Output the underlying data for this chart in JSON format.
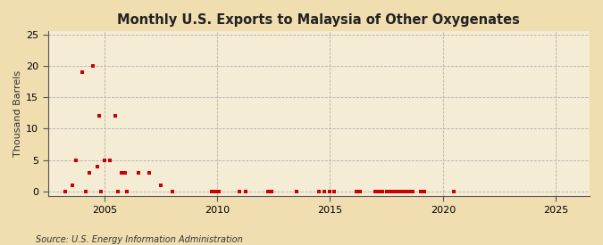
{
  "title": "Monthly U.S. Exports to Malaysia of Other Oxygenates",
  "ylabel": "Thousand Barrels",
  "source": "Source: U.S. Energy Information Administration",
  "outer_bg_color": "#f0ddb0",
  "plot_bg_color": "#f5ecd5",
  "marker_color": "#cc0000",
  "marker_size": 3,
  "xlim": [
    2002.5,
    2026.5
  ],
  "ylim": [
    -0.8,
    25.5
  ],
  "yticks": [
    0,
    5,
    10,
    15,
    20,
    25
  ],
  "xticks": [
    2005,
    2010,
    2015,
    2020,
    2025
  ],
  "grid_color": "#aaaaaa",
  "spine_color": "#555555",
  "data_x": [
    2003.25,
    2003.58,
    2003.75,
    2004.0,
    2004.17,
    2004.33,
    2004.5,
    2004.67,
    2004.75,
    2004.83,
    2005.0,
    2005.25,
    2005.5,
    2005.58,
    2005.75,
    2005.92,
    2006.0,
    2006.5,
    2007.0,
    2007.5,
    2008.0,
    2009.75,
    2009.83,
    2009.92,
    2010.0,
    2010.08,
    2011.0,
    2011.25,
    2012.25,
    2012.42,
    2013.5,
    2014.5,
    2014.75,
    2015.0,
    2015.17,
    2016.17,
    2016.33,
    2017.0,
    2017.17,
    2017.33,
    2017.5,
    2017.67,
    2017.83,
    2018.0,
    2018.08,
    2018.17,
    2018.25,
    2018.33,
    2018.42,
    2018.5,
    2018.58,
    2018.67,
    2019.0,
    2019.17,
    2020.5
  ],
  "data_y": [
    0,
    1,
    5,
    19,
    0,
    3,
    20,
    4,
    12,
    0,
    5,
    5,
    12,
    0,
    3,
    3,
    0,
    3,
    3,
    1,
    0,
    0,
    0,
    0,
    0,
    0,
    0,
    0,
    0,
    0,
    0,
    0,
    0,
    0,
    0,
    0,
    0,
    0,
    0,
    0,
    0,
    0,
    0,
    0,
    0,
    0,
    0,
    0,
    0,
    0,
    0,
    0,
    0,
    0,
    0
  ]
}
